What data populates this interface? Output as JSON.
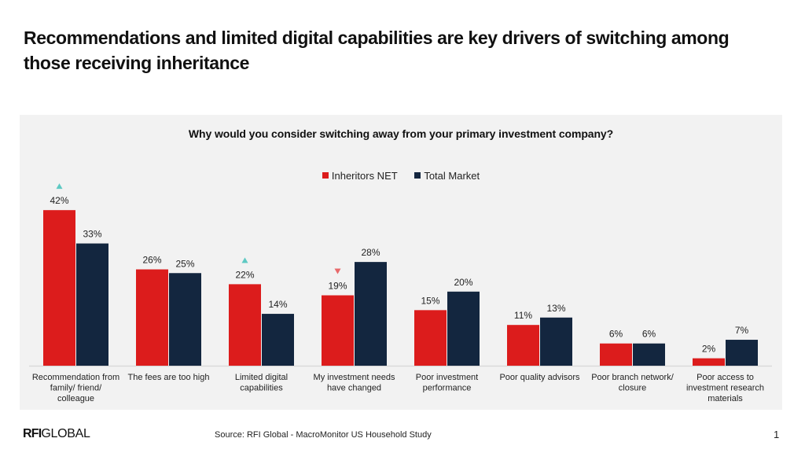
{
  "slide": {
    "title": "Recommendations and limited digital capabilities are key drivers of switching among those receiving inheritance",
    "footer": {
      "logo_bold": "RFI",
      "logo_light": "GLOBAL",
      "source": "Source: RFI Global - MacroMonitor US Household Study",
      "page_number": "1"
    }
  },
  "colors": {
    "inheritors": "#dc1c1c",
    "total_market": "#13263f",
    "panel_bg": "#f2f2f2",
    "arrow_up": "#5ec9c3",
    "arrow_down": "#e8696b",
    "axis": "#d9d9d9"
  },
  "chart_data": {
    "type": "bar",
    "title": "Why would you consider switching away from your primary investment company?",
    "xlabel": "",
    "ylabel": "",
    "ylim": [
      0,
      45
    ],
    "grid": false,
    "legend_position": "top-center",
    "value_suffix": "%",
    "categories": [
      "Recommendation from family/ friend/ colleague",
      "The fees are too high",
      "Limited digital capabilities",
      "My investment needs have changed",
      "Poor investment performance",
      "Poor quality advisors",
      "Poor branch network/ closure",
      "Poor access to investment research materials"
    ],
    "category_lines": [
      [
        "Recommendation from",
        "family/ friend/",
        "colleague"
      ],
      [
        "The fees are too high"
      ],
      [
        "Limited digital",
        "capabilities"
      ],
      [
        "My investment needs",
        "have changed"
      ],
      [
        "Poor investment",
        "performance"
      ],
      [
        "Poor quality advisors"
      ],
      [
        "Poor branch network/",
        "closure"
      ],
      [
        "Poor access to",
        "investment research",
        "materials"
      ]
    ],
    "series": [
      {
        "name": "Inheritors NET",
        "values": [
          42,
          26,
          22,
          19,
          15,
          11,
          6,
          2
        ],
        "significance": [
          "up",
          null,
          "up",
          "down",
          null,
          null,
          null,
          null
        ]
      },
      {
        "name": "Total Market",
        "values": [
          33,
          25,
          14,
          28,
          20,
          13,
          6,
          7
        ]
      }
    ]
  }
}
